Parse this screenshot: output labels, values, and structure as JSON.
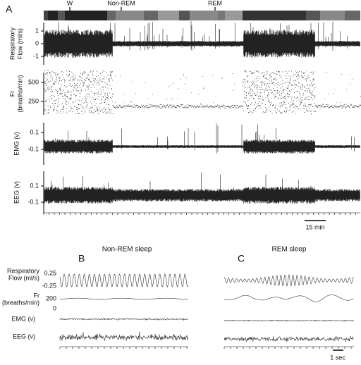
{
  "panel_a": {
    "letter": "A",
    "states": [
      "W",
      "Non-REM",
      "REM"
    ],
    "rows": [
      {
        "label": [
          "Respiratory",
          "Flow (ml/s)"
        ],
        "ticks": [
          "1",
          "0",
          "-1"
        ]
      },
      {
        "label": [
          "Fr",
          "(breaths/min)"
        ],
        "ticks": [
          "500",
          "250"
        ]
      },
      {
        "label": [
          "EMG (v)"
        ],
        "ticks": [
          "0.1",
          "-0.1"
        ]
      },
      {
        "label": [
          "EEG (v)"
        ],
        "ticks": [
          "0.1",
          "-0.1"
        ]
      }
    ],
    "scale": "15 min"
  },
  "panel_b": {
    "letter": "B",
    "title": "Non-REM sleep",
    "rows": [
      {
        "label": [
          "Respiratory",
          "Flow (ml/s)"
        ],
        "ticks": [
          "0.25",
          "-0.25"
        ]
      },
      {
        "label": [
          "Fr",
          "(breaths/min)"
        ],
        "ticks": [
          "200",
          "0"
        ]
      },
      {
        "label": [
          "EMG (v)"
        ],
        "ticks": []
      },
      {
        "label": [
          "EEG (v)"
        ],
        "ticks": []
      }
    ]
  },
  "panel_c": {
    "letter": "C",
    "title": "REM sleep",
    "scale": "1 sec"
  }
}
